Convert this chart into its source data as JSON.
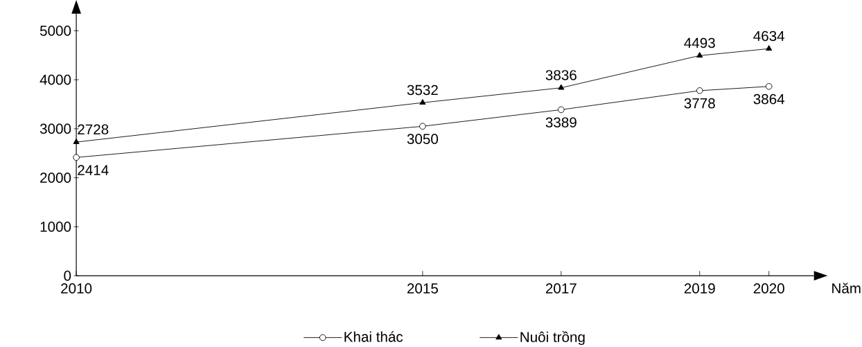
{
  "chart_data": {
    "type": "line",
    "xlabel": "Năm",
    "x": [
      2010,
      2015,
      2017,
      2019,
      2020
    ],
    "xlim": [
      2010,
      2020.65
    ],
    "xticks": [
      2010,
      2015,
      2017,
      2019,
      2020
    ],
    "ylim": [
      0,
      5350
    ],
    "yticks": [
      0,
      1000,
      2000,
      3000,
      4000,
      5000
    ],
    "data_labels": true,
    "legend": "bottom",
    "series": [
      {
        "name": "Khai thác",
        "color": "#000000",
        "marker": "circle",
        "values": [
          2414,
          3050,
          3389,
          3778,
          3864
        ]
      },
      {
        "name": "Nuôi trồng",
        "color": "#000000",
        "marker": "triangle",
        "values": [
          2728,
          3532,
          3836,
          4493,
          4634
        ]
      }
    ]
  }
}
